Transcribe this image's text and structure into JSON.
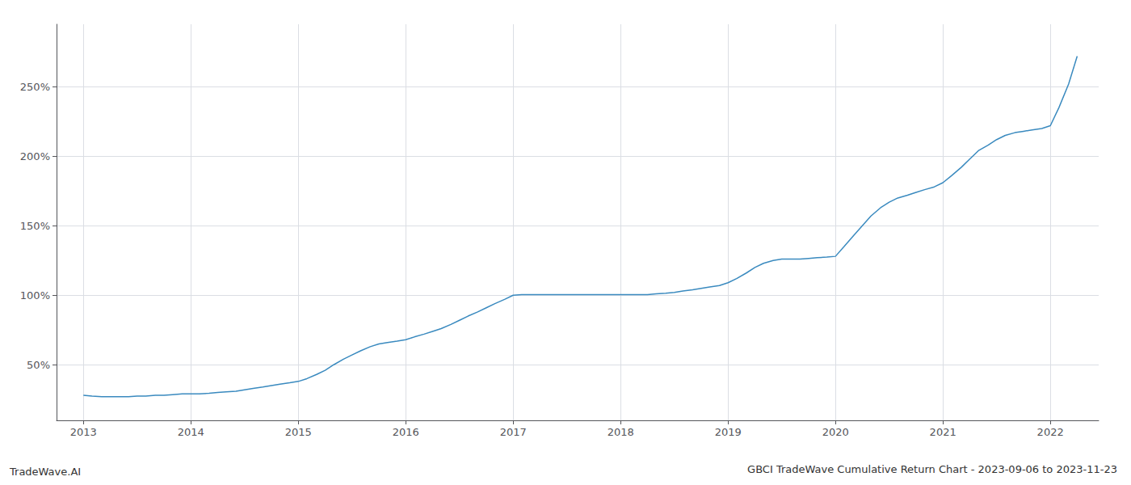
{
  "chart_data": {
    "type": "line",
    "title": "GBCI TradeWave Cumulative Return Chart - 2023-09-06 to 2023-11-23",
    "annotations": [
      "TradeWave.AI"
    ],
    "color": "#3a8abf",
    "x": [
      2013.0,
      2013.08,
      2013.17,
      2013.25,
      2013.33,
      2013.42,
      2013.5,
      2013.58,
      2013.67,
      2013.75,
      2013.83,
      2013.92,
      2014.0,
      2014.08,
      2014.17,
      2014.25,
      2014.33,
      2014.42,
      2014.5,
      2014.58,
      2014.67,
      2014.75,
      2014.83,
      2014.92,
      2015.0,
      2015.08,
      2015.17,
      2015.25,
      2015.33,
      2015.42,
      2015.5,
      2015.58,
      2015.67,
      2015.75,
      2015.83,
      2015.92,
      2016.0,
      2016.08,
      2016.17,
      2016.25,
      2016.33,
      2016.42,
      2016.5,
      2016.58,
      2016.67,
      2016.75,
      2016.83,
      2016.92,
      2017.0,
      2017.08,
      2017.17,
      2017.25,
      2017.33,
      2017.42,
      2017.5,
      2017.58,
      2017.67,
      2017.75,
      2017.83,
      2017.92,
      2018.0,
      2018.08,
      2018.17,
      2018.25,
      2018.33,
      2018.42,
      2018.5,
      2018.58,
      2018.67,
      2018.75,
      2018.83,
      2018.92,
      2019.0,
      2019.08,
      2019.17,
      2019.25,
      2019.33,
      2019.42,
      2019.5,
      2019.58,
      2019.67,
      2019.75,
      2019.83,
      2019.92,
      2020.0,
      2020.08,
      2020.17,
      2020.25,
      2020.33,
      2020.42,
      2020.5,
      2020.58,
      2020.67,
      2020.75,
      2020.83,
      2020.92,
      2021.0,
      2021.08,
      2021.17,
      2021.25,
      2021.33,
      2021.42,
      2021.5,
      2021.58,
      2021.67,
      2021.75,
      2021.83,
      2021.92,
      2022.0,
      2022.08,
      2022.17,
      2022.25
    ],
    "values": [
      28,
      27.5,
      27,
      27,
      27,
      27,
      27.5,
      27.5,
      28,
      28,
      28.5,
      29,
      29,
      29,
      29.5,
      30,
      30.5,
      31,
      32,
      33,
      34,
      35,
      36,
      37,
      38,
      40,
      43,
      46,
      50,
      54,
      57,
      60,
      63,
      65,
      66,
      67,
      68,
      70,
      72,
      74,
      76,
      79,
      82,
      85,
      88,
      91,
      94,
      97,
      100,
      100.5,
      100.5,
      100.5,
      100.5,
      100.5,
      100.5,
      100.5,
      100.5,
      100.5,
      100.5,
      100.5,
      100.5,
      100.5,
      100.5,
      100.5,
      101,
      101.5,
      102,
      103,
      104,
      105,
      106,
      107,
      109,
      112,
      116,
      120,
      123,
      125,
      126,
      126,
      126,
      126.5,
      127,
      127.5,
      128,
      135,
      143,
      150,
      157,
      163,
      167,
      170,
      172,
      174,
      176,
      178,
      181,
      186,
      192,
      198,
      204,
      208,
      212,
      215,
      217,
      218,
      219,
      220,
      222,
      235,
      252,
      272
    ],
    "xlim": [
      2012.75,
      2022.45
    ],
    "xticks": [
      2013,
      2014,
      2015,
      2016,
      2017,
      2018,
      2019,
      2020,
      2021,
      2022
    ],
    "ylim": [
      10,
      295
    ],
    "yticks": [
      {
        "value": 50,
        "label": "50%"
      },
      {
        "value": 100,
        "label": "100%"
      },
      {
        "value": 150,
        "label": "150%"
      },
      {
        "value": 200,
        "label": "200%"
      },
      {
        "value": 250,
        "label": "250%"
      }
    ],
    "grid": true
  }
}
